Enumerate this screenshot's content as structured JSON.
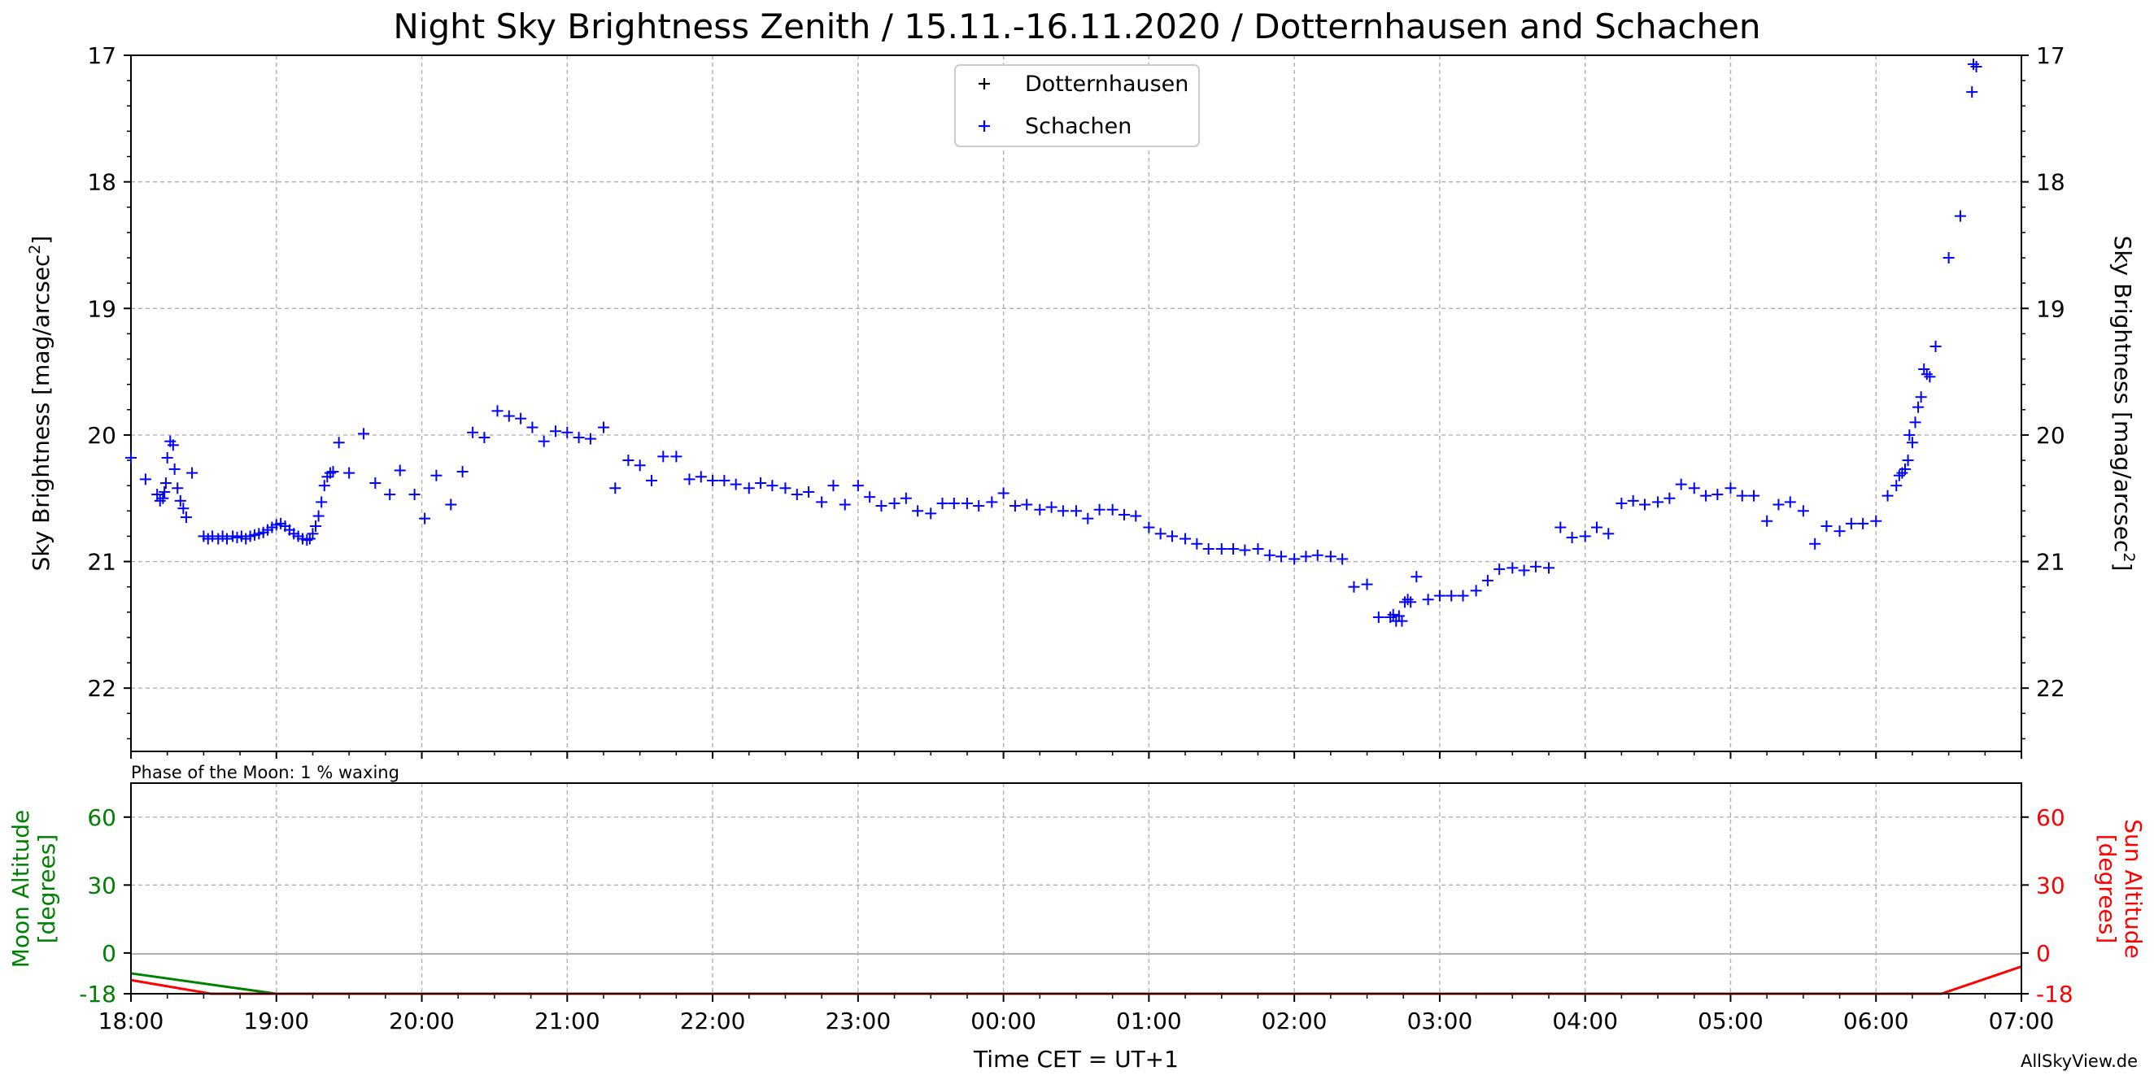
{
  "chart_data": [
    {
      "type": "scatter",
      "title": "Night Sky Brightness Zenith / 15.11.-16.11.2020 / Dotternhausen and Schachen",
      "ylabel_left": "Sky Brightness [mag/arcsec",
      "ylabel_right": "Sky Brightness [mag/arcsec",
      "ylabel_sup": "2",
      "ylabel_end": "]",
      "x_unit": "hours since 18:00 CET",
      "xlim": [
        0,
        13
      ],
      "ylim": [
        22.5,
        17
      ],
      "y_ticks": [
        17,
        18,
        19,
        20,
        21,
        22
      ],
      "grid": true,
      "legend_position": "top-center",
      "series": [
        {
          "name": "Dotternhausen",
          "color": "#000000",
          "points": []
        },
        {
          "name": "Schachen",
          "color": "#0000ff",
          "points": [
            [
              0.0,
              20.18
            ],
            [
              0.1,
              20.35
            ],
            [
              0.18,
              20.47
            ],
            [
              0.2,
              20.52
            ],
            [
              0.22,
              20.5
            ],
            [
              0.23,
              20.45
            ],
            [
              0.24,
              20.38
            ],
            [
              0.25,
              20.18
            ],
            [
              0.27,
              20.05
            ],
            [
              0.29,
              20.08
            ],
            [
              0.3,
              20.27
            ],
            [
              0.32,
              20.42
            ],
            [
              0.34,
              20.52
            ],
            [
              0.36,
              20.58
            ],
            [
              0.38,
              20.65
            ],
            [
              0.42,
              20.3
            ],
            [
              0.5,
              20.8
            ],
            [
              0.53,
              20.82
            ],
            [
              0.56,
              20.8
            ],
            [
              0.6,
              20.82
            ],
            [
              0.63,
              20.8
            ],
            [
              0.66,
              20.82
            ],
            [
              0.7,
              20.8
            ],
            [
              0.73,
              20.81
            ],
            [
              0.76,
              20.8
            ],
            [
              0.79,
              20.82
            ],
            [
              0.82,
              20.8
            ],
            [
              0.85,
              20.79
            ],
            [
              0.88,
              20.78
            ],
            [
              0.91,
              20.77
            ],
            [
              0.94,
              20.75
            ],
            [
              0.97,
              20.73
            ],
            [
              1.0,
              20.71
            ],
            [
              1.03,
              20.7
            ],
            [
              1.06,
              20.72
            ],
            [
              1.09,
              20.75
            ],
            [
              1.12,
              20.78
            ],
            [
              1.15,
              20.8
            ],
            [
              1.18,
              20.82
            ],
            [
              1.21,
              20.83
            ],
            [
              1.23,
              20.82
            ],
            [
              1.25,
              20.78
            ],
            [
              1.27,
              20.72
            ],
            [
              1.29,
              20.64
            ],
            [
              1.31,
              20.53
            ],
            [
              1.33,
              20.4
            ],
            [
              1.35,
              20.33
            ],
            [
              1.37,
              20.3
            ],
            [
              1.39,
              20.29
            ],
            [
              1.43,
              20.06
            ],
            [
              1.5,
              20.3
            ],
            [
              1.6,
              19.99
            ],
            [
              1.68,
              20.38
            ],
            [
              1.78,
              20.47
            ],
            [
              1.85,
              20.28
            ],
            [
              1.95,
              20.47
            ],
            [
              2.02,
              20.66
            ],
            [
              2.1,
              20.32
            ],
            [
              2.2,
              20.55
            ],
            [
              2.28,
              20.29
            ],
            [
              2.35,
              19.98
            ],
            [
              2.43,
              20.02
            ],
            [
              2.52,
              19.81
            ],
            [
              2.6,
              19.85
            ],
            [
              2.68,
              19.87
            ],
            [
              2.76,
              19.94
            ],
            [
              2.84,
              20.05
            ],
            [
              2.92,
              19.97
            ],
            [
              3.0,
              19.98
            ],
            [
              3.08,
              20.02
            ],
            [
              3.16,
              20.03
            ],
            [
              3.25,
              19.94
            ],
            [
              3.33,
              20.42
            ],
            [
              3.42,
              20.2
            ],
            [
              3.5,
              20.24
            ],
            [
              3.58,
              20.36
            ],
            [
              3.66,
              20.17
            ],
            [
              3.75,
              20.17
            ],
            [
              3.84,
              20.35
            ],
            [
              3.92,
              20.33
            ],
            [
              4.0,
              20.36
            ],
            [
              4.08,
              20.36
            ],
            [
              4.16,
              20.39
            ],
            [
              4.25,
              20.42
            ],
            [
              4.33,
              20.38
            ],
            [
              4.41,
              20.4
            ],
            [
              4.5,
              20.42
            ],
            [
              4.58,
              20.47
            ],
            [
              4.66,
              20.45
            ],
            [
              4.75,
              20.53
            ],
            [
              4.83,
              20.4
            ],
            [
              4.91,
              20.55
            ],
            [
              5.0,
              20.4
            ],
            [
              5.08,
              20.49
            ],
            [
              5.16,
              20.56
            ],
            [
              5.25,
              20.54
            ],
            [
              5.33,
              20.5
            ],
            [
              5.41,
              20.6
            ],
            [
              5.5,
              20.62
            ],
            [
              5.58,
              20.54
            ],
            [
              5.66,
              20.54
            ],
            [
              5.75,
              20.54
            ],
            [
              5.83,
              20.56
            ],
            [
              5.92,
              20.53
            ],
            [
              6.0,
              20.46
            ],
            [
              6.08,
              20.56
            ],
            [
              6.16,
              20.55
            ],
            [
              6.25,
              20.59
            ],
            [
              6.33,
              20.57
            ],
            [
              6.41,
              20.6
            ],
            [
              6.5,
              20.6
            ],
            [
              6.58,
              20.66
            ],
            [
              6.66,
              20.59
            ],
            [
              6.75,
              20.59
            ],
            [
              6.83,
              20.63
            ],
            [
              6.91,
              20.64
            ],
            [
              7.0,
              20.73
            ],
            [
              7.08,
              20.78
            ],
            [
              7.16,
              20.8
            ],
            [
              7.25,
              20.82
            ],
            [
              7.33,
              20.86
            ],
            [
              7.41,
              20.9
            ],
            [
              7.5,
              20.9
            ],
            [
              7.58,
              20.9
            ],
            [
              7.66,
              20.91
            ],
            [
              7.75,
              20.9
            ],
            [
              7.83,
              20.95
            ],
            [
              7.91,
              20.96
            ],
            [
              8.0,
              20.98
            ],
            [
              8.08,
              20.96
            ],
            [
              8.16,
              20.95
            ],
            [
              8.25,
              20.96
            ],
            [
              8.33,
              20.98
            ],
            [
              8.41,
              21.2
            ],
            [
              8.5,
              21.18
            ],
            [
              8.58,
              21.44
            ],
            [
              8.66,
              21.44
            ],
            [
              8.68,
              21.42
            ],
            [
              8.7,
              21.47
            ],
            [
              8.72,
              21.43
            ],
            [
              8.74,
              21.47
            ],
            [
              8.76,
              21.32
            ],
            [
              8.78,
              21.3
            ],
            [
              8.8,
              21.32
            ],
            [
              8.84,
              21.12
            ],
            [
              8.92,
              21.3
            ],
            [
              9.0,
              21.27
            ],
            [
              9.08,
              21.27
            ],
            [
              9.16,
              21.27
            ],
            [
              9.25,
              21.23
            ],
            [
              9.33,
              21.15
            ],
            [
              9.41,
              21.06
            ],
            [
              9.5,
              21.05
            ],
            [
              9.58,
              21.07
            ],
            [
              9.66,
              21.04
            ],
            [
              9.75,
              21.05
            ],
            [
              9.83,
              20.73
            ],
            [
              9.91,
              20.81
            ],
            [
              10.0,
              20.8
            ],
            [
              10.08,
              20.73
            ],
            [
              10.16,
              20.78
            ],
            [
              10.25,
              20.54
            ],
            [
              10.33,
              20.52
            ],
            [
              10.41,
              20.55
            ],
            [
              10.5,
              20.53
            ],
            [
              10.58,
              20.5
            ],
            [
              10.66,
              20.39
            ],
            [
              10.75,
              20.42
            ],
            [
              10.83,
              20.48
            ],
            [
              10.91,
              20.47
            ],
            [
              11.0,
              20.42
            ],
            [
              11.08,
              20.48
            ],
            [
              11.16,
              20.48
            ],
            [
              11.25,
              20.68
            ],
            [
              11.33,
              20.55
            ],
            [
              11.41,
              20.53
            ],
            [
              11.5,
              20.6
            ],
            [
              11.58,
              20.86
            ],
            [
              11.66,
              20.72
            ],
            [
              11.75,
              20.76
            ],
            [
              11.83,
              20.7
            ],
            [
              11.91,
              20.7
            ],
            [
              12.0,
              20.68
            ],
            [
              12.08,
              20.48
            ],
            [
              12.14,
              20.4
            ],
            [
              12.16,
              20.32
            ],
            [
              12.18,
              20.3
            ],
            [
              12.2,
              20.27
            ],
            [
              12.22,
              20.2
            ],
            [
              12.23,
              20.0
            ],
            [
              12.25,
              20.06
            ],
            [
              12.27,
              19.9
            ],
            [
              12.29,
              19.78
            ],
            [
              12.31,
              19.7
            ],
            [
              12.33,
              19.48
            ],
            [
              12.35,
              19.52
            ],
            [
              12.37,
              19.54
            ],
            [
              12.41,
              19.3
            ],
            [
              12.5,
              18.6
            ],
            [
              12.58,
              18.27
            ],
            [
              12.66,
              17.29
            ],
            [
              12.67,
              17.07
            ],
            [
              12.69,
              17.09
            ]
          ]
        }
      ]
    },
    {
      "type": "line",
      "note": "Phase of the Moon: 1 % waxing",
      "ylabel_left_l1": "Moon Altitude",
      "ylabel_left_l2": "[degrees]",
      "ylabel_right_l1": "Sun Altitude",
      "ylabel_right_l2": "[degrees]",
      "xlabel": "Time CET = UT+1",
      "x_ticks": [
        "18:00",
        "19:00",
        "20:00",
        "21:00",
        "22:00",
        "23:00",
        "00:00",
        "01:00",
        "02:00",
        "03:00",
        "04:00",
        "05:00",
        "06:00",
        "07:00"
      ],
      "xlim": [
        0,
        13
      ],
      "ylim": [
        -18,
        75
      ],
      "y_ticks": [
        -18,
        0,
        30,
        60
      ],
      "grid": true,
      "series": [
        {
          "label": "Moon Altitude",
          "color": "#008000",
          "points": [
            [
              0,
              -9
            ],
            [
              1,
              -18
            ]
          ]
        },
        {
          "label": "Sun Altitude",
          "color": "#ff0000",
          "points": [
            [
              0,
              -12
            ],
            [
              0.55,
              -18
            ],
            [
              12.45,
              -18
            ],
            [
              13,
              -6
            ]
          ]
        }
      ]
    }
  ],
  "credit": "AllSkyView.de"
}
